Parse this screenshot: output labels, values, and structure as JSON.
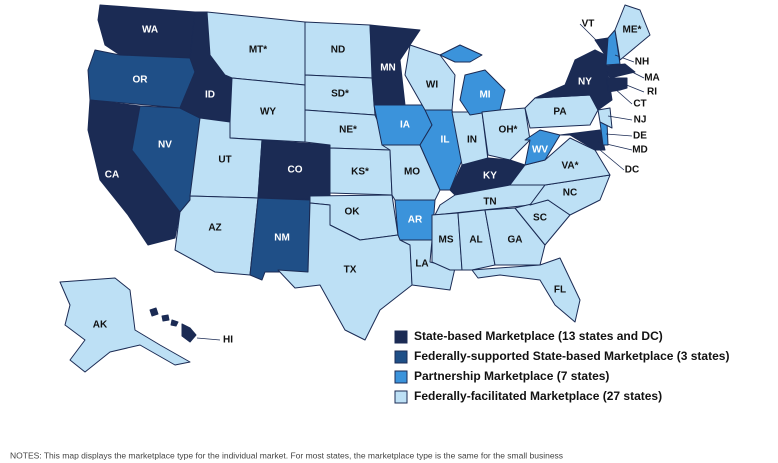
{
  "legend": [
    {
      "label": "State-based Marketplace (13 states and DC)",
      "color": "#1b2b54"
    },
    {
      "label": "Federally-supported State-based Marketplace (3 states)",
      "color": "#1f4f87"
    },
    {
      "label": "Partnership Marketplace (7 states)",
      "color": "#3b93db"
    },
    {
      "label": "Federally-facilitated Marketplace (27 states)",
      "color": "#bde0f5"
    }
  ],
  "states": [
    {
      "label": "WA",
      "marketplace": 0
    },
    {
      "label": "OR",
      "marketplace": 1
    },
    {
      "label": "CA",
      "marketplace": 0
    },
    {
      "label": "NV",
      "marketplace": 1
    },
    {
      "label": "ID",
      "marketplace": 0
    },
    {
      "label": "MT*",
      "marketplace": 3
    },
    {
      "label": "WY",
      "marketplace": 3
    },
    {
      "label": "UT",
      "marketplace": 3
    },
    {
      "label": "CO",
      "marketplace": 0
    },
    {
      "label": "AZ",
      "marketplace": 3
    },
    {
      "label": "NM",
      "marketplace": 1
    },
    {
      "label": "ND",
      "marketplace": 3
    },
    {
      "label": "SD*",
      "marketplace": 3
    },
    {
      "label": "NE*",
      "marketplace": 3
    },
    {
      "label": "KS*",
      "marketplace": 3
    },
    {
      "label": "OK",
      "marketplace": 3
    },
    {
      "label": "TX",
      "marketplace": 3
    },
    {
      "label": "MN",
      "marketplace": 0
    },
    {
      "label": "IA",
      "marketplace": 2
    },
    {
      "label": "MO",
      "marketplace": 3
    },
    {
      "label": "AR",
      "marketplace": 2
    },
    {
      "label": "LA",
      "marketplace": 3
    },
    {
      "label": "WI",
      "marketplace": 3
    },
    {
      "label": "IL",
      "marketplace": 2
    },
    {
      "label": "IN",
      "marketplace": 3
    },
    {
      "label": "MI",
      "marketplace": 2
    },
    {
      "label": "OH*",
      "marketplace": 3
    },
    {
      "label": "KY",
      "marketplace": 0
    },
    {
      "label": "TN",
      "marketplace": 3
    },
    {
      "label": "MS",
      "marketplace": 3
    },
    {
      "label": "AL",
      "marketplace": 3
    },
    {
      "label": "GA",
      "marketplace": 3
    },
    {
      "label": "FL",
      "marketplace": 3
    },
    {
      "label": "SC",
      "marketplace": 3
    },
    {
      "label": "NC",
      "marketplace": 3
    },
    {
      "label": "VA*",
      "marketplace": 3
    },
    {
      "label": "WV",
      "marketplace": 2
    },
    {
      "label": "MD",
      "marketplace": 0
    },
    {
      "label": "DE",
      "marketplace": 2
    },
    {
      "label": "PA",
      "marketplace": 3
    },
    {
      "label": "NY",
      "marketplace": 0
    },
    {
      "label": "NJ",
      "marketplace": 3
    },
    {
      "label": "VT",
      "marketplace": 0
    },
    {
      "label": "NH",
      "marketplace": 2
    },
    {
      "label": "ME*",
      "marketplace": 3
    },
    {
      "label": "MA",
      "marketplace": 0
    },
    {
      "label": "CT",
      "marketplace": 0
    },
    {
      "label": "RI",
      "marketplace": 0
    },
    {
      "label": "DC",
      "marketplace": 0
    },
    {
      "label": "AK",
      "marketplace": 3
    },
    {
      "label": "HI",
      "marketplace": 0
    }
  ],
  "notes": "NOTES: This map displays the marketplace type for the individual market. For most states, the marketplace type is the same for the small business"
}
